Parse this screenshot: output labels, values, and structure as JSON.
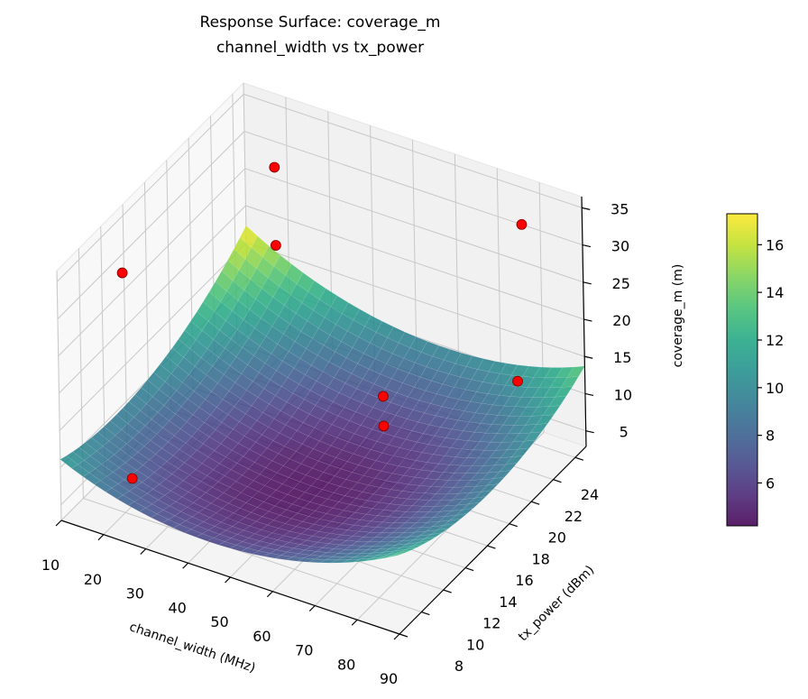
{
  "chart_data": {
    "type": "surface3d",
    "title": [
      "Response Surface: coverage_m",
      "channel_width vs tx_power"
    ],
    "xlabel": "channel_width (MHz)",
    "ylabel": "tx_power (dBm)",
    "zlabel": "coverage_m (m)",
    "xlim": [
      10,
      90
    ],
    "ylim": [
      8,
      25
    ],
    "zlim": [
      2.9,
      36.5
    ],
    "xticks": [
      "10",
      "20",
      "30",
      "40",
      "50",
      "60",
      "70",
      "80",
      "90"
    ],
    "yticks": [
      "8",
      "10",
      "12",
      "14",
      "16",
      "18",
      "20",
      "22",
      "24"
    ],
    "zticks": [
      "5",
      "10",
      "15",
      "20",
      "25",
      "30",
      "35"
    ],
    "grid": true,
    "colormap": "viridis",
    "surface": {
      "x": [
        10,
        30,
        50,
        70,
        90
      ],
      "y": [
        8,
        12.25,
        16.5,
        20.75,
        25
      ],
      "z": [
        [
          11.1,
          7.5,
          6.8,
          8.7,
          13.5
        ],
        [
          9.6,
          5.7,
          4.6,
          6.2,
          10.5
        ],
        [
          10.2,
          5.9,
          4.4,
          5.6,
          9.6
        ],
        [
          12.7,
          8.1,
          6.2,
          7.0,
          10.6
        ],
        [
          17.3,
          12.2,
          10.0,
          10.4,
          13.7
        ]
      ]
    },
    "colorbar": {
      "range": [
        4.2,
        17.3
      ],
      "ticks": [
        "6",
        "8",
        "10",
        "12",
        "14",
        "16"
      ]
    },
    "points": {
      "color": "#ff0000",
      "data": [
        {
          "x": 17,
          "y": 25,
          "z": 26.5
        },
        {
          "x": 17,
          "y": 25,
          "z": 16
        },
        {
          "x": 12,
          "y": 13.1,
          "z": 29
        },
        {
          "x": 75.6,
          "y": 25,
          "z": 30
        },
        {
          "x": 60,
          "y": 18.2,
          "z": 14
        },
        {
          "x": 60,
          "y": 18.2,
          "z": 10
        },
        {
          "x": 78.5,
          "y": 23.3,
          "z": 12
        },
        {
          "x": 26,
          "y": 8.4,
          "z": 11
        }
      ]
    }
  }
}
